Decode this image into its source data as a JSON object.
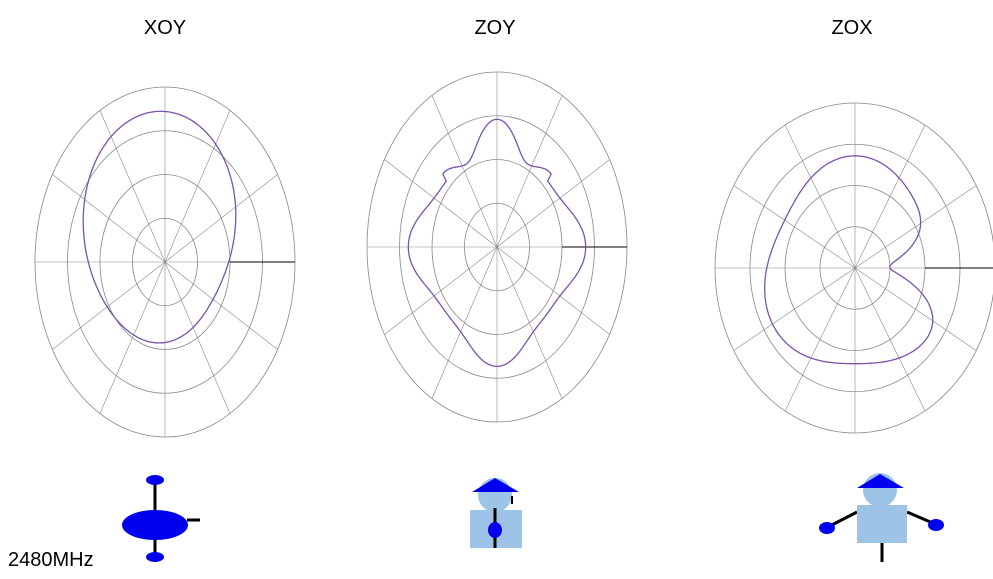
{
  "titles": [
    "XOY",
    "ZOY",
    "ZOX"
  ],
  "frequency": "2480MHz"
}
